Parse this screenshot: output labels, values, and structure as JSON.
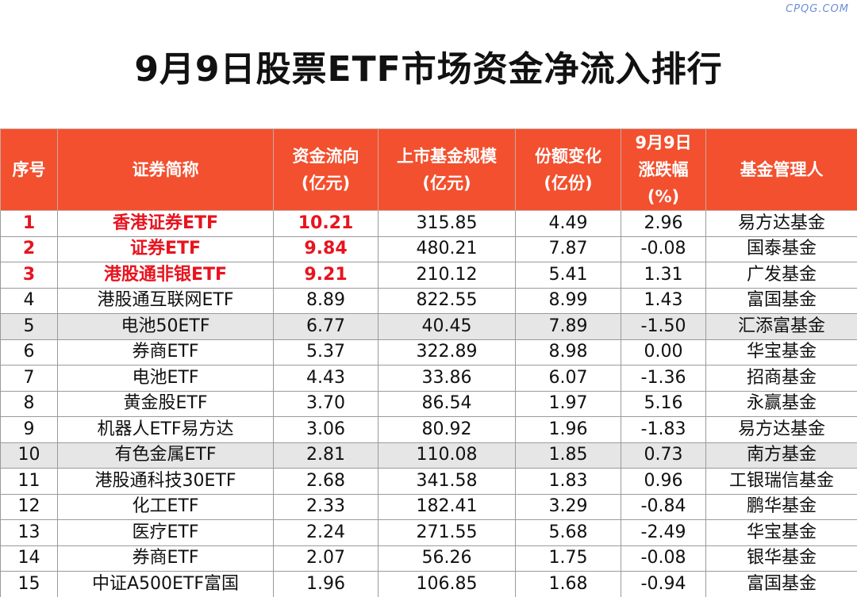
{
  "watermark": "CPQG.COM",
  "title": "9月9日股票ETF市场资金净流入排行",
  "headers": {
    "rank": "序号",
    "name": "证券简称",
    "flow_1": "资金流向",
    "flow_2": "(亿元)",
    "scale_1": "上市基金规模",
    "scale_2": "(亿元)",
    "shares_1": "份额变化",
    "shares_2": "(亿份)",
    "change_1": "9月9日",
    "change_2": "涨跌幅",
    "change_3": "(%)",
    "manager": "基金管理人"
  },
  "rows": [
    {
      "rank": "1",
      "name": "香港证券ETF",
      "flow": "10.21",
      "scale": "315.85",
      "shares": "4.49",
      "change": "2.96",
      "manager": "易方达基金"
    },
    {
      "rank": "2",
      "name": "证券ETF",
      "flow": "9.84",
      "scale": "480.21",
      "shares": "7.87",
      "change": "-0.08",
      "manager": "国泰基金"
    },
    {
      "rank": "3",
      "name": "港股通非银ETF",
      "flow": "9.21",
      "scale": "210.12",
      "shares": "5.41",
      "change": "1.31",
      "manager": "广发基金"
    },
    {
      "rank": "4",
      "name": "港股通互联网ETF",
      "flow": "8.89",
      "scale": "822.55",
      "shares": "8.99",
      "change": "1.43",
      "manager": "富国基金"
    },
    {
      "rank": "5",
      "name": "电池50ETF",
      "flow": "6.77",
      "scale": "40.45",
      "shares": "7.89",
      "change": "-1.50",
      "manager": "汇添富基金"
    },
    {
      "rank": "6",
      "name": "券商ETF",
      "flow": "5.37",
      "scale": "322.89",
      "shares": "8.98",
      "change": "0.00",
      "manager": "华宝基金"
    },
    {
      "rank": "7",
      "name": "电池ETF",
      "flow": "4.43",
      "scale": "33.86",
      "shares": "6.07",
      "change": "-1.36",
      "manager": "招商基金"
    },
    {
      "rank": "8",
      "name": "黄金股ETF",
      "flow": "3.70",
      "scale": "86.54",
      "shares": "1.97",
      "change": "5.16",
      "manager": "永赢基金"
    },
    {
      "rank": "9",
      "name": "机器人ETF易方达",
      "flow": "3.06",
      "scale": "80.92",
      "shares": "1.96",
      "change": "-1.83",
      "manager": "易方达基金"
    },
    {
      "rank": "10",
      "name": "有色金属ETF",
      "flow": "2.81",
      "scale": "110.08",
      "shares": "1.85",
      "change": "0.73",
      "manager": "南方基金"
    },
    {
      "rank": "11",
      "name": "港股通科技30ETF",
      "flow": "2.68",
      "scale": "341.58",
      "shares": "1.83",
      "change": "0.96",
      "manager": "工银瑞信基金"
    },
    {
      "rank": "12",
      "name": "化工ETF",
      "flow": "2.33",
      "scale": "182.41",
      "shares": "3.29",
      "change": "-0.84",
      "manager": "鹏华基金"
    },
    {
      "rank": "13",
      "name": "医疗ETF",
      "flow": "2.24",
      "scale": "271.55",
      "shares": "5.68",
      "change": "-2.49",
      "manager": "华宝基金"
    },
    {
      "rank": "14",
      "name": "券商ETF",
      "flow": "2.07",
      "scale": "56.26",
      "shares": "1.75",
      "change": "-0.08",
      "manager": "银华基金"
    },
    {
      "rank": "15",
      "name": "中证A500ETF富国",
      "flow": "1.96",
      "scale": "106.85",
      "shares": "1.68",
      "change": "-0.94",
      "manager": "富国基金"
    }
  ],
  "colors": {
    "header_bg": "#f2502f",
    "highlight_text": "#e8131e",
    "shaded_row": "#e6e6e6"
  }
}
